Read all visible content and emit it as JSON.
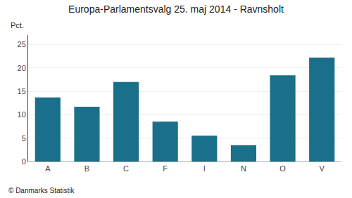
{
  "chart_data": {
    "type": "bar",
    "title": "Europa-Parlamentsvalg 25. maj 2014 - Ravnsholt",
    "ylabel": "Pct.",
    "annotations": [
      "© Danmarks Statistik"
    ],
    "categories": [
      "A",
      "B",
      "C",
      "F",
      "I",
      "N",
      "O",
      "V"
    ],
    "values": [
      13.7,
      11.7,
      17.0,
      8.5,
      5.5,
      3.5,
      18.4,
      22.2
    ],
    "color": "#1a6f8a",
    "ylim": [
      0,
      27
    ],
    "yticks": [
      0,
      5,
      10,
      15,
      20,
      25
    ],
    "grid": true
  }
}
